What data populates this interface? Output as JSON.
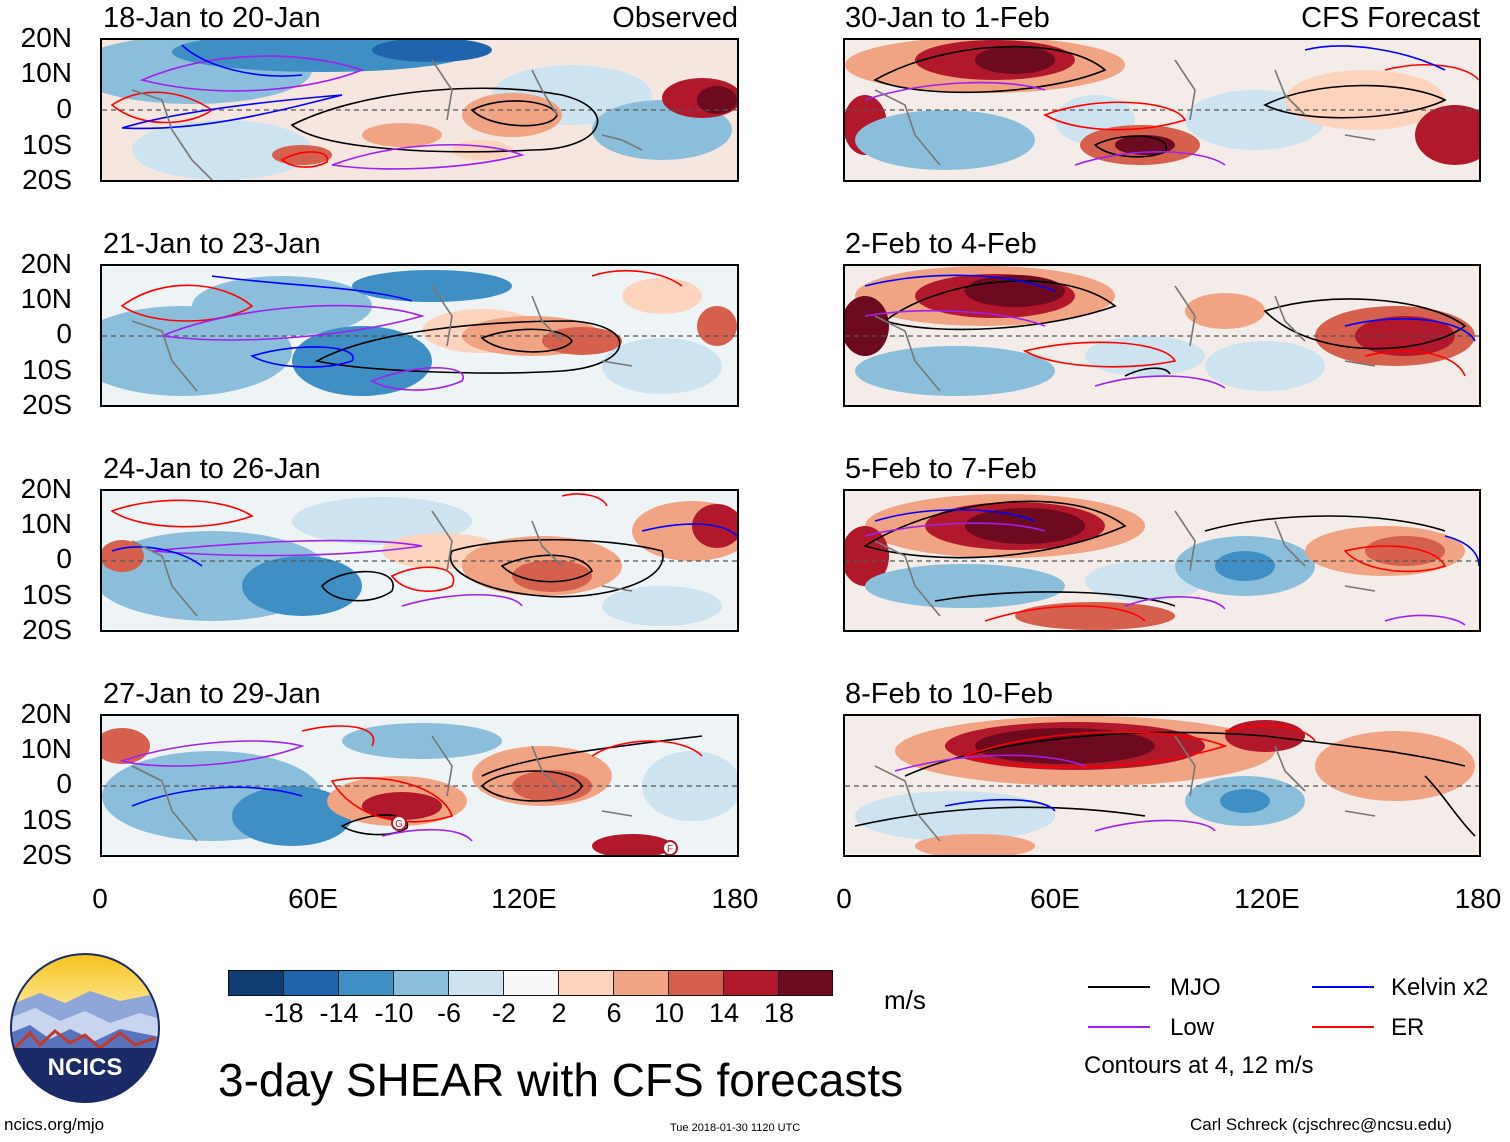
{
  "units": "m/s",
  "main_title": "3-day SHEAR with CFS forecasts",
  "contour_note": "Contours at 4, 12 m/s",
  "footer": {
    "url": "ncics.org/mjo",
    "timestamp": "Tue 2018-01-30 1120 UTC",
    "author": "Carl Schreck (cjschrec@ncsu.edu)"
  },
  "logo": {
    "text": "NCICS"
  },
  "column_tags": {
    "left": "Observed",
    "right": "CFS Forecast"
  },
  "axes": {
    "lat_labels": [
      "20N",
      "10N",
      "0",
      "10S",
      "20S"
    ],
    "lon_labels": [
      "0",
      "60E",
      "120E",
      "180"
    ]
  },
  "panels_left": [
    {
      "title": "18-Jan to 20-Jan"
    },
    {
      "title": "21-Jan to 23-Jan"
    },
    {
      "title": "24-Jan to 26-Jan"
    },
    {
      "title": "27-Jan to 29-Jan"
    }
  ],
  "panels_right": [
    {
      "title": "30-Jan to 1-Feb"
    },
    {
      "title": "2-Feb to 4-Feb"
    },
    {
      "title": "5-Feb to 7-Feb"
    },
    {
      "title": "8-Feb to 10-Feb"
    }
  ],
  "colorbar": {
    "ticks": [
      "-18",
      "-14",
      "-10",
      "-6",
      "-2",
      "2",
      "6",
      "10",
      "14",
      "18"
    ],
    "colors": [
      "#0f3d72",
      "#2064ad",
      "#3f8fc4",
      "#8bbedb",
      "#cde3ef",
      "#f8f8f8",
      "#fcd3bd",
      "#f0a484",
      "#d4604d",
      "#b1182b",
      "#6d0a1f"
    ]
  },
  "legend": [
    {
      "label": "MJO",
      "color": "#000000"
    },
    {
      "label": "Kelvin x2",
      "color": "#0000ff"
    },
    {
      "label": "Low",
      "color": "#a020f0"
    },
    {
      "label": "ER",
      "color": "#ff0000"
    }
  ],
  "cyclone_markers": [
    "G",
    "F"
  ]
}
